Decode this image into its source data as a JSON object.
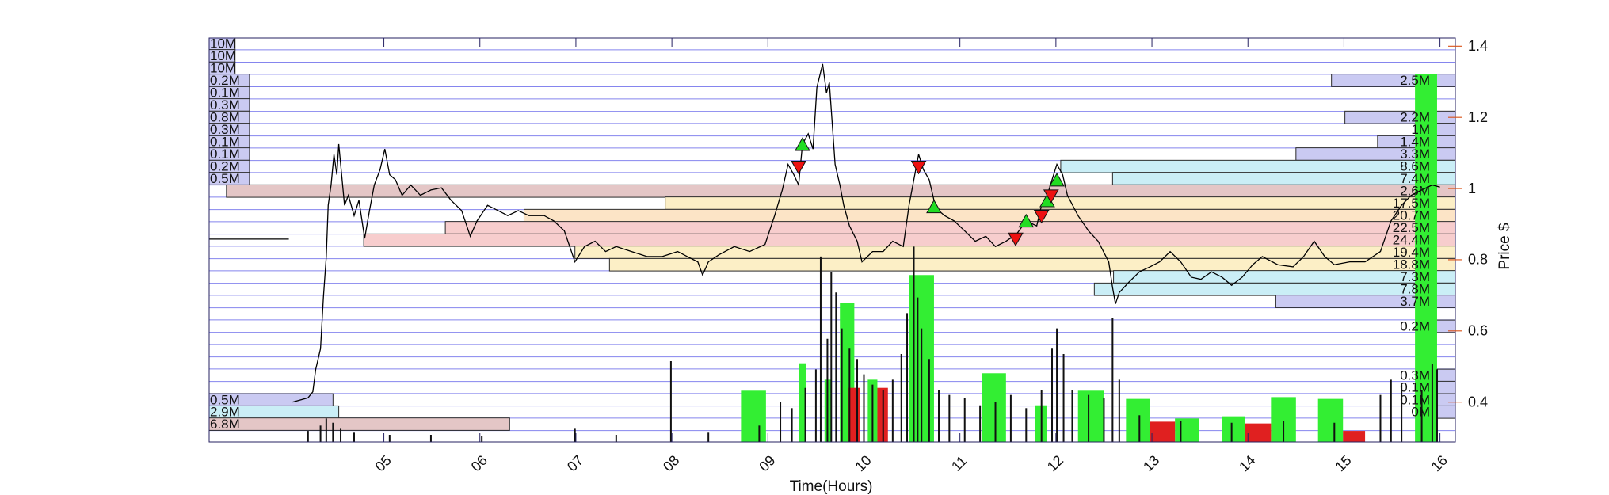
{
  "chart_data": {
    "type": "line",
    "xlabel": "Time(Hours)",
    "ylabel": "Price $",
    "xlim": [
      3.18,
      16.16
    ],
    "xticks": [
      {
        "value": 5,
        "label": "05"
      },
      {
        "value": 6,
        "label": "06"
      },
      {
        "value": 7,
        "label": "07"
      },
      {
        "value": 8,
        "label": "08"
      },
      {
        "value": 9,
        "label": "09"
      },
      10,
      11,
      12,
      13,
      14,
      15,
      16
    ],
    "ylim": [
      0.288,
      1.423
    ],
    "yticks": [
      0.4,
      0.6,
      0.8,
      1,
      1.2,
      1.4
    ],
    "yaxis_side": "right",
    "axis_color": "#d95319",
    "level_color": "#8585ee",
    "levels": [
      0.32,
      0.355,
      0.389,
      0.424,
      0.458,
      0.493,
      0.527,
      0.562,
      0.596,
      0.631,
      0.665,
      0.7,
      0.734,
      0.769,
      0.803,
      0.838,
      0.872,
      0.907,
      0.941,
      0.976,
      1.01,
      1.045,
      1.079,
      1.114,
      1.148,
      1.183,
      1.217,
      1.252,
      1.286,
      1.321,
      1.355,
      1.39
    ],
    "price": {
      "color": "#000000",
      "x": [
        3.18,
        4.01,
        4.03,
        4.05,
        4.21,
        4.26,
        4.29,
        4.34,
        4.37,
        4.4,
        4.42,
        4.45,
        4.48,
        4.51,
        4.53,
        4.56,
        4.59,
        4.63,
        4.69,
        4.74,
        4.8,
        4.85,
        4.9,
        4.96,
        5.01,
        5.06,
        5.12,
        5.19,
        5.28,
        5.38,
        5.49,
        5.6,
        5.7,
        5.81,
        5.9,
        5.97,
        6.08,
        6.19,
        6.29,
        6.4,
        6.51,
        6.67,
        6.77,
        6.88,
        6.99,
        7.09,
        7.2,
        7.31,
        7.42,
        7.58,
        7.74,
        7.9,
        8.06,
        8.16,
        8.27,
        8.32,
        8.38,
        8.49,
        8.65,
        8.81,
        8.97,
        9.07,
        9.15,
        9.21,
        9.27,
        9.32,
        9.36,
        9.42,
        9.47,
        9.51,
        9.57,
        9.61,
        9.64,
        9.67,
        9.7,
        9.75,
        9.79,
        9.85,
        9.93,
        9.98,
        10.09,
        10.2,
        10.3,
        10.41,
        10.47,
        10.53,
        10.57,
        10.62,
        10.68,
        10.73,
        10.78,
        10.84,
        10.94,
        11.05,
        11.16,
        11.27,
        11.37,
        11.48,
        11.59,
        11.69,
        11.8,
        11.85,
        11.91,
        11.96,
        12.01,
        12.07,
        12.12,
        12.23,
        12.34,
        12.44,
        12.55,
        12.59,
        12.62,
        12.66,
        12.76,
        12.87,
        12.98,
        13.08,
        13.19,
        13.3,
        13.41,
        13.51,
        13.62,
        13.73,
        13.83,
        13.94,
        14.05,
        14.15,
        14.31,
        14.47,
        14.58,
        14.69,
        14.8,
        14.9,
        15.06,
        15.22,
        15.38,
        15.49,
        15.6,
        15.7,
        15.81,
        15.92,
        16.0
      ],
      "values": [
        0.858,
        0.858,
        null,
        0.4,
        0.412,
        0.429,
        0.492,
        0.55,
        0.694,
        0.809,
        0.953,
        1.01,
        1.096,
        1.039,
        1.125,
        1.039,
        0.953,
        0.981,
        0.924,
        0.967,
        0.86,
        0.938,
        1.01,
        1.053,
        1.111,
        1.039,
        1.025,
        0.981,
        1.01,
        0.981,
        0.996,
        1.002,
        0.967,
        0.938,
        0.866,
        0.909,
        0.953,
        0.938,
        0.924,
        0.938,
        0.924,
        0.924,
        0.909,
        0.881,
        0.794,
        0.837,
        0.852,
        0.823,
        0.837,
        0.823,
        0.809,
        0.809,
        0.823,
        0.809,
        0.794,
        0.757,
        0.794,
        0.814,
        0.837,
        0.823,
        0.843,
        0.924,
        0.996,
        1.068,
        1.039,
        1.01,
        1.125,
        1.154,
        1.111,
        1.284,
        1.35,
        1.269,
        1.298,
        1.183,
        1.068,
        1.01,
        0.953,
        0.895,
        0.852,
        0.794,
        0.823,
        0.823,
        0.852,
        0.837,
        0.953,
        1.039,
        1.096,
        1.053,
        1.025,
        0.967,
        0.938,
        0.924,
        0.909,
        0.881,
        0.852,
        0.866,
        0.837,
        0.852,
        0.872,
        0.909,
        0.895,
        0.953,
        0.981,
        1.025,
        1.068,
        1.039,
        0.981,
        0.924,
        0.881,
        0.852,
        0.794,
        0.722,
        0.676,
        0.708,
        0.737,
        0.766,
        0.78,
        0.794,
        0.823,
        0.794,
        0.751,
        0.745,
        0.766,
        0.751,
        0.728,
        0.751,
        0.786,
        0.809,
        0.786,
        0.78,
        0.809,
        0.852,
        0.809,
        0.786,
        0.794,
        0.794,
        0.823,
        0.909,
        0.953,
        0.981,
        0.996,
        1.01,
        1.004
      ]
    },
    "markers": [
      {
        "marker": "triangle-up",
        "color": "#22dd22",
        "x": [
          9.36,
          10.73,
          11.69,
          11.91,
          12.01
        ],
        "y": [
          1.122,
          0.947,
          0.907,
          0.964,
          1.022
        ]
      },
      {
        "marker": "triangle-down",
        "color": "#ee1111",
        "x": [
          9.32,
          10.57,
          11.58,
          11.85,
          11.95
        ],
        "y": [
          1.062,
          1.062,
          0.86,
          0.924,
          0.981
        ]
      }
    ],
    "profile": [
      {
        "label": "2.5M",
        "price": 1.304,
        "x": 14.87,
        "anchor": "right",
        "color": "#cacaf2"
      },
      {
        "label": "2.2M",
        "price": 1.2,
        "x": 15.01,
        "anchor": "right",
        "color": "#cacaf2"
      },
      {
        "label": "1M",
        "price": 1.166,
        "x": 15.81,
        "anchor": "right",
        "color": "#cacaf2"
      },
      {
        "label": "1.4M",
        "price": 1.131,
        "x": 15.35,
        "anchor": "right",
        "color": "#cacaf2"
      },
      {
        "label": "3.3M",
        "price": 1.097,
        "x": 14.5,
        "anchor": "right",
        "color": "#cacaf2"
      },
      {
        "label": "8.6M",
        "price": 1.062,
        "x": 12.05,
        "anchor": "right",
        "color": "#caeef6"
      },
      {
        "label": "7.4M",
        "price": 1.028,
        "x": 12.59,
        "anchor": "right",
        "color": "#caeef6"
      },
      {
        "label": "2.6M",
        "price": 0.993,
        "x": 3.36,
        "anchor": "right",
        "color": "#e4c6c6"
      },
      {
        "label": "17.5M",
        "price": 0.959,
        "x": 7.93,
        "anchor": "right",
        "color": "#fcefc6"
      },
      {
        "label": "20.7M",
        "price": 0.924,
        "x": 6.46,
        "anchor": "right",
        "color": "#fce4c6"
      },
      {
        "label": "22.5M",
        "price": 0.89,
        "x": 5.64,
        "anchor": "right",
        "color": "#f7cdcd"
      },
      {
        "label": "24.4M",
        "price": 0.855,
        "x": 4.79,
        "anchor": "right",
        "color": "#f7cdcd"
      },
      {
        "label": "19.4M",
        "price": 0.821,
        "x": 6.99,
        "anchor": "right",
        "color": "#fcefc6"
      },
      {
        "label": "18.8M",
        "price": 0.786,
        "x": 7.35,
        "anchor": "right",
        "color": "#fcefc6"
      },
      {
        "label": "7.3M",
        "price": 0.752,
        "x": 12.6,
        "anchor": "right",
        "color": "#caeef6"
      },
      {
        "label": "7.8M",
        "price": 0.717,
        "x": 12.4,
        "anchor": "right",
        "color": "#caeef6"
      },
      {
        "label": "3.7M",
        "price": 0.683,
        "x": 14.29,
        "anchor": "right",
        "color": "#cacaf2"
      },
      {
        "label": "0.2M",
        "price": 0.613,
        "x": 15.92,
        "anchor": "right",
        "color": "#cacaf2"
      },
      {
        "label": "0.3M",
        "price": 0.475,
        "x": 15.95,
        "anchor": "right",
        "color": "#cacaf2"
      },
      {
        "label": "0.1M",
        "price": 0.441,
        "x": 15.95,
        "anchor": "right",
        "color": "#cacaf2"
      },
      {
        "label": "0.1M",
        "price": 0.406,
        "x": 15.95,
        "anchor": "right",
        "color": "#cacaf2"
      },
      {
        "label": "0M",
        "price": 0.372,
        "x": 15.95,
        "anchor": "right",
        "color": "#cacaf2"
      },
      {
        "label": "10M",
        "price": 1.407,
        "x": 3.45,
        "anchor": "left",
        "color": "#cacaf2"
      },
      {
        "label": "10M",
        "price": 1.373,
        "x": 3.45,
        "anchor": "left",
        "color": "#cacaf2"
      },
      {
        "label": "10M",
        "price": 1.338,
        "x": 3.45,
        "anchor": "left",
        "color": "#cacaf2"
      },
      {
        "label": "0.2M",
        "price": 1.304,
        "x": 3.6,
        "anchor": "left",
        "color": "#cacaf2"
      },
      {
        "label": "0.1M",
        "price": 1.269,
        "x": 3.6,
        "anchor": "left",
        "color": "#cacaf2"
      },
      {
        "label": "0.3M",
        "price": 1.235,
        "x": 3.6,
        "anchor": "left",
        "color": "#cacaf2"
      },
      {
        "label": "0.8M",
        "price": 1.2,
        "x": 3.6,
        "anchor": "left",
        "color": "#cacaf2"
      },
      {
        "label": "0.3M",
        "price": 1.166,
        "x": 3.6,
        "anchor": "left",
        "color": "#cacaf2"
      },
      {
        "label": "0.1M",
        "price": 1.131,
        "x": 3.6,
        "anchor": "left",
        "color": "#cacaf2"
      },
      {
        "label": "0.1M",
        "price": 1.097,
        "x": 3.6,
        "anchor": "left",
        "color": "#cacaf2"
      },
      {
        "label": "0.2M",
        "price": 1.062,
        "x": 3.6,
        "anchor": "left",
        "color": "#cacaf2"
      },
      {
        "label": "0.5M",
        "price": 1.028,
        "x": 3.6,
        "anchor": "left",
        "color": "#cacaf2"
      },
      {
        "label": "0.5M",
        "price": 0.406,
        "x": 4.47,
        "anchor": "left",
        "color": "#cacaf2"
      },
      {
        "label": "2.9M",
        "price": 0.372,
        "x": 4.53,
        "anchor": "left",
        "color": "#caeef6"
      },
      {
        "label": "6.8M",
        "price": 0.338,
        "x": 6.31,
        "anchor": "left",
        "color": "#e4c6c6"
      }
    ],
    "volume_blocks": {
      "x0": [
        8.72,
        9.32,
        9.59,
        9.75,
        10.04,
        10.47,
        11.23,
        11.78,
        12.23,
        12.73,
        13.24,
        13.73,
        14.24,
        14.73,
        15.74,
        9.84,
        10.14,
        12.98,
        13.97,
        14.99
      ],
      "x1": [
        8.98,
        9.4,
        9.66,
        9.9,
        10.14,
        10.73,
        11.48,
        11.91,
        12.5,
        12.98,
        13.49,
        13.97,
        14.5,
        14.99,
        15.97,
        9.96,
        10.25,
        13.24,
        14.24,
        15.22
      ],
      "values": [
        0.432,
        0.509,
        0.463,
        0.679,
        0.463,
        0.757,
        0.481,
        0.391,
        0.432,
        0.409,
        0.354,
        0.36,
        0.414,
        0.409,
        1.321,
        0.44,
        0.44,
        0.345,
        0.34,
        0.319
      ],
      "colors": [
        "#33ee33",
        "#33ee33",
        "#33ee33",
        "#33ee33",
        "#33ee33",
        "#33ee33",
        "#33ee33",
        "#33ee33",
        "#33ee33",
        "#33ee33",
        "#33ee33",
        "#33ee33",
        "#33ee33",
        "#33ee33",
        "#33ee33",
        "#e02020",
        "#e02020",
        "#e02020",
        "#e02020",
        "#e02020"
      ]
    },
    "volume_spikes": {
      "color": "#111111",
      "x": [
        4.21,
        4.34,
        4.4,
        4.47,
        4.55,
        4.69,
        5.06,
        5.49,
        6.02,
        6.99,
        7.42,
        7.99,
        8.38,
        8.91,
        9.13,
        9.25,
        9.39,
        9.5,
        9.55,
        9.62,
        9.66,
        9.71,
        9.77,
        9.85,
        9.93,
        10.0,
        10.09,
        10.2,
        10.3,
        10.39,
        10.45,
        10.52,
        10.56,
        10.6,
        10.68,
        10.78,
        10.89,
        11.05,
        11.21,
        11.37,
        11.53,
        11.69,
        11.85,
        11.96,
        12.01,
        12.08,
        12.17,
        12.34,
        12.5,
        12.59,
        12.66,
        12.87,
        13.3,
        13.83,
        14.37,
        14.9,
        15.38,
        15.49,
        15.6,
        15.81,
        15.92,
        15.97
      ],
      "values": [
        0.319,
        0.334,
        0.354,
        0.342,
        0.325,
        0.314,
        0.308,
        0.308,
        0.305,
        0.325,
        0.308,
        0.515,
        0.314,
        0.334,
        0.4,
        0.383,
        0.44,
        0.492,
        0.809,
        0.578,
        0.765,
        0.708,
        0.607,
        0.55,
        0.521,
        0.478,
        0.449,
        0.435,
        0.463,
        0.535,
        0.65,
        0.837,
        0.694,
        0.607,
        0.521,
        0.435,
        0.42,
        0.412,
        0.391,
        0.4,
        0.42,
        0.383,
        0.435,
        0.55,
        0.607,
        0.535,
        0.435,
        0.42,
        0.412,
        0.636,
        0.463,
        0.363,
        0.348,
        0.342,
        0.348,
        0.342,
        0.42,
        0.463,
        0.449,
        0.435,
        0.506,
        0.492
      ]
    }
  }
}
